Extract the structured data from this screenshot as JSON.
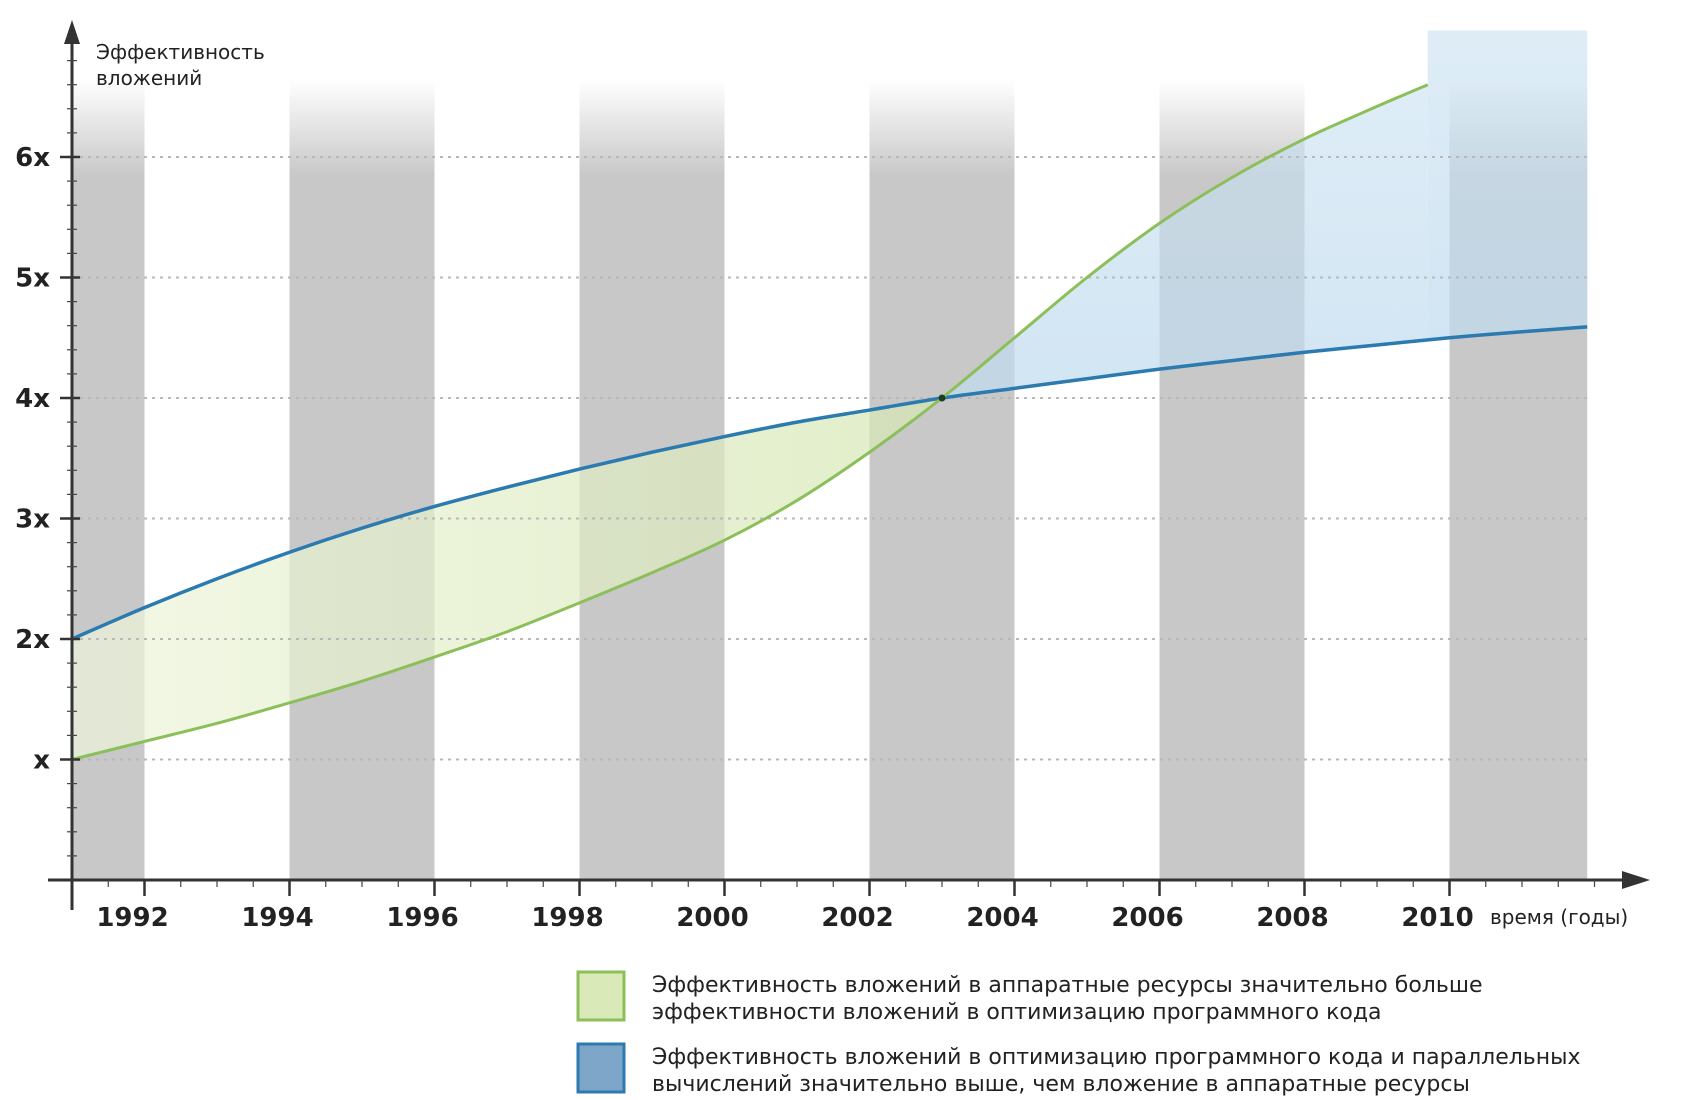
{
  "chart_data": {
    "type": "line",
    "ylabel": [
      "Эффективность",
      "вложений"
    ],
    "xlabel": "время (годы)",
    "x_ticks": [
      "1992",
      "1994",
      "1996",
      "1998",
      "2000",
      "2002",
      "2004",
      "2006",
      "2008",
      "2010"
    ],
    "x_tick_values": [
      1992,
      1994,
      1996,
      1998,
      2000,
      2002,
      2004,
      2006,
      2008,
      2010
    ],
    "y_ticks": [
      "x",
      "2x",
      "3x",
      "4x",
      "5x",
      "6x"
    ],
    "y_tick_values": [
      1,
      2,
      3,
      4,
      5,
      6
    ],
    "xlim": [
      1991.0,
      2012.2
    ],
    "ylim": [
      0,
      7.2
    ],
    "grid": "horizontal dotted",
    "shaded_bands": [
      [
        1991.0,
        1992.0
      ],
      [
        1994.0,
        1996.0
      ],
      [
        1998.0,
        2000.0
      ],
      [
        2002.0,
        2004.0
      ],
      [
        2006.0,
        2008.0
      ],
      [
        2010.0,
        2011.9
      ]
    ],
    "series": [
      {
        "key": "software",
        "color": "#2b7ab0",
        "x": [
          1991.0,
          1992.0,
          1993.0,
          1994.0,
          1995.0,
          1996.0,
          1997.0,
          1998.0,
          1999.0,
          2000.0,
          2001.0,
          2002.0,
          2003.0,
          2004.0,
          2005.0,
          2006.0,
          2007.0,
          2008.0,
          2009.0,
          2010.0,
          2011.0,
          2011.9
        ],
        "y": [
          2.0,
          2.26,
          2.5,
          2.72,
          2.92,
          3.1,
          3.26,
          3.41,
          3.55,
          3.68,
          3.8,
          3.9,
          4.0,
          4.08,
          4.16,
          4.24,
          4.31,
          4.38,
          4.44,
          4.5,
          4.55,
          4.59
        ]
      },
      {
        "key": "hardware",
        "color": "#8cbf5a",
        "x": [
          1991.0,
          1992.0,
          1993.0,
          1994.0,
          1995.0,
          1996.0,
          1997.0,
          1998.0,
          1999.0,
          2000.0,
          2001.0,
          2002.0,
          2003.0,
          2004.0,
          2005.0,
          2006.0,
          2007.0,
          2008.0,
          2009.0,
          2009.7
        ],
        "y": [
          1.0,
          1.15,
          1.3,
          1.47,
          1.65,
          1.85,
          2.06,
          2.3,
          2.55,
          2.82,
          3.15,
          3.55,
          4.0,
          4.5,
          5.0,
          5.45,
          5.83,
          6.15,
          6.42,
          6.6
        ]
      }
    ],
    "legend": [
      {
        "key": "hardware-better",
        "fill": "#d9e9b8",
        "stroke": "#8cbf5a",
        "lines": [
          "Эффективность вложений в аппаратные ресурсы значительно больше",
          "эффективности вложений в оптимизацию программного кода"
        ]
      },
      {
        "key": "software-better",
        "fill": "#7ea6c9",
        "stroke": "#2b7ab0",
        "lines": [
          "Эффективность вложений в оптимизацию программного кода и параллельных",
          "вычислений значительно выше, чем вложение в аппаратные ресурсы"
        ]
      }
    ]
  }
}
